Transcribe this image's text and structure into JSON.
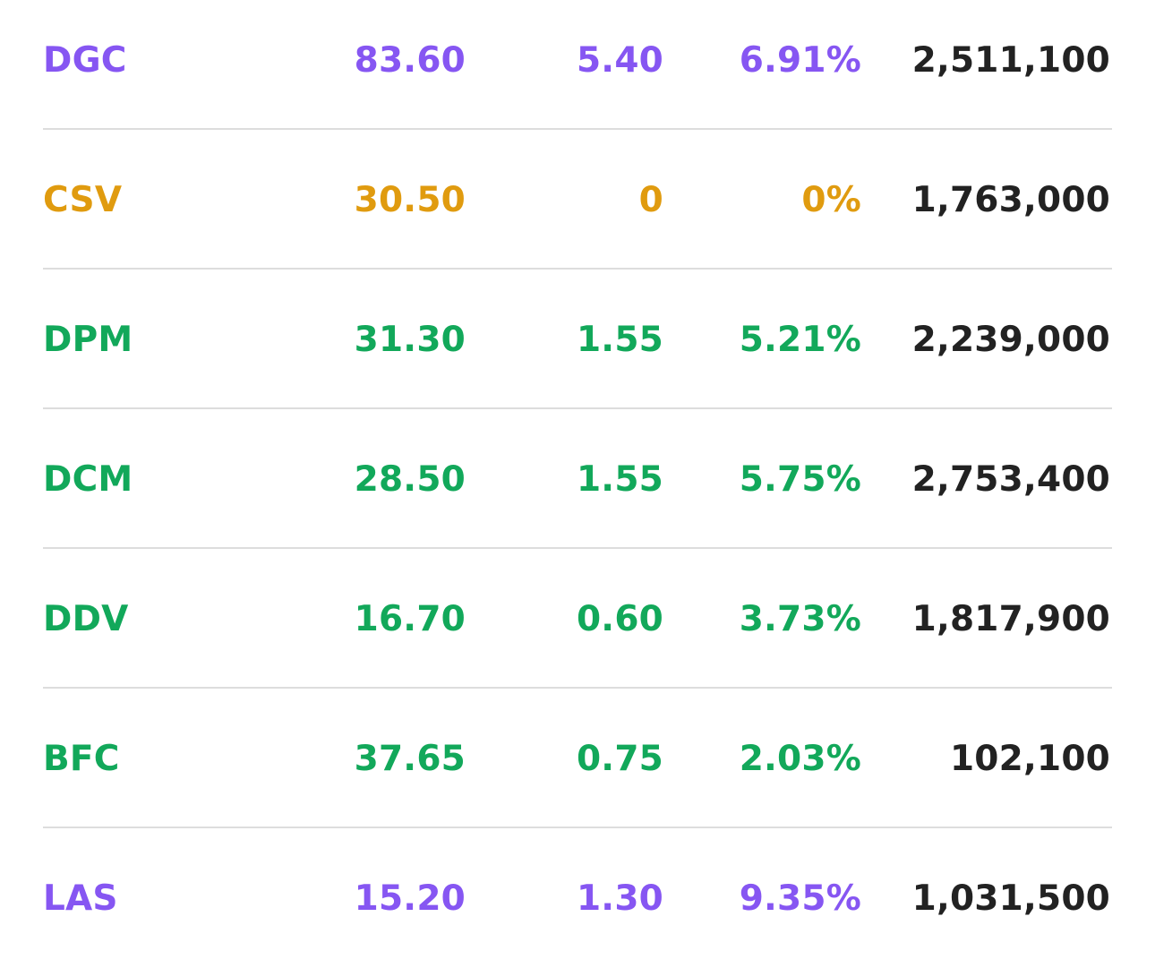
{
  "colors": {
    "ceiling": "#8656f2",
    "reference": "#e09b0f",
    "up": "#12a85a",
    "volume": "#222222",
    "divider": "#dddddd",
    "background": "#ffffff"
  },
  "rows": [
    {
      "symbol": "DGC",
      "price": "83.60",
      "change": "5.40",
      "percent": "6.91%",
      "volume": "2,511,100",
      "status": "ceiling"
    },
    {
      "symbol": "CSV",
      "price": "30.50",
      "change": "0",
      "percent": "0%",
      "volume": "1,763,000",
      "status": "reference"
    },
    {
      "symbol": "DPM",
      "price": "31.30",
      "change": "1.55",
      "percent": "5.21%",
      "volume": "2,239,000",
      "status": "up"
    },
    {
      "symbol": "DCM",
      "price": "28.50",
      "change": "1.55",
      "percent": "5.75%",
      "volume": "2,753,400",
      "status": "up"
    },
    {
      "symbol": "DDV",
      "price": "16.70",
      "change": "0.60",
      "percent": "3.73%",
      "volume": "1,817,900",
      "status": "up"
    },
    {
      "symbol": "BFC",
      "price": "37.65",
      "change": "0.75",
      "percent": "2.03%",
      "volume": "102,100",
      "status": "up"
    },
    {
      "symbol": "LAS",
      "price": "15.20",
      "change": "1.30",
      "percent": "9.35%",
      "volume": "1,031,500",
      "status": "ceiling"
    }
  ]
}
